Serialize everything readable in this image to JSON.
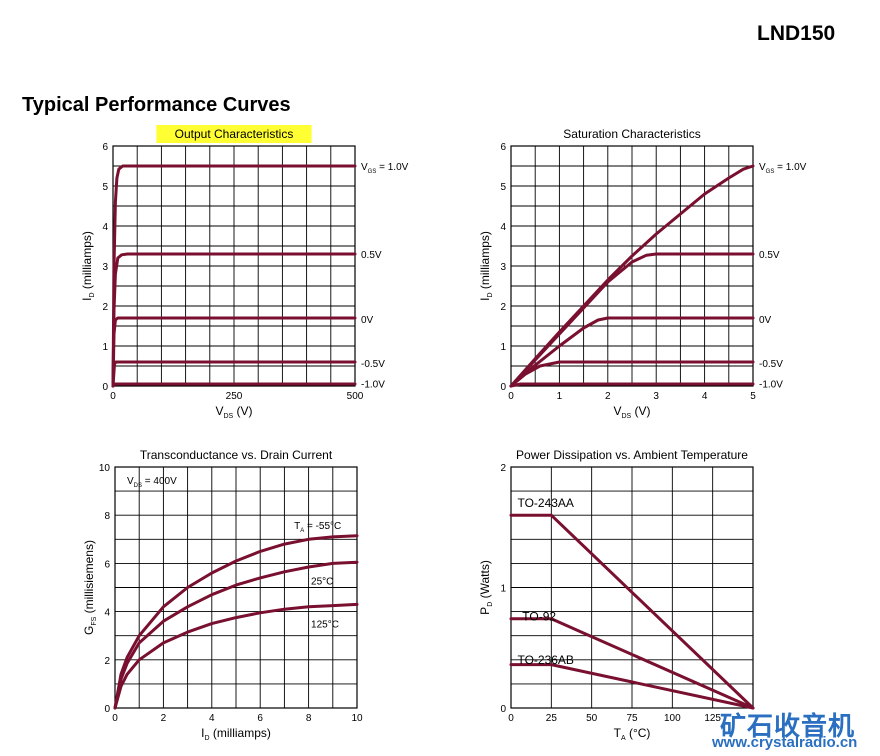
{
  "header": {
    "part_number": "LND150",
    "section_title": "Typical Performance Curves"
  },
  "watermark": {
    "brand": "矿石收音机",
    "url": "www.crystalradio.cn",
    "color": "#2a6fc0"
  },
  "colors": {
    "curve": "#7a1030",
    "grid": "#000000",
    "highlight": "#ffff33"
  },
  "chart_data": [
    {
      "type": "line",
      "title": "Output Characteristics",
      "title_highlighted": true,
      "xlabel": "V",
      "xlabel_sub": "DS",
      "xlabel_unit": " (V)",
      "ylabel": "I",
      "ylabel_sub": "D",
      "ylabel_unit": " (milliamps)",
      "xlim": [
        0,
        500
      ],
      "ylim": [
        0,
        6
      ],
      "xticks": [
        0,
        250,
        500
      ],
      "yticks": [
        0,
        1,
        2,
        3,
        4,
        5,
        6
      ],
      "xgrid": 10,
      "ygrid": 12,
      "grid": true,
      "series": [
        {
          "name": "1.0V",
          "name_prefix": "V",
          "name_sub": "GS",
          "name_suffix": " = ",
          "label_y": 5.5,
          "x": [
            0,
            2,
            5,
            8,
            12,
            20,
            30,
            500
          ],
          "y": [
            0,
            3.0,
            4.6,
            5.2,
            5.42,
            5.5,
            5.5,
            5.5
          ]
        },
        {
          "name": "0.5V",
          "label_y": 3.3,
          "x": [
            0,
            2,
            5,
            10,
            18,
            30,
            500
          ],
          "y": [
            0,
            1.9,
            2.8,
            3.2,
            3.28,
            3.3,
            3.3
          ]
        },
        {
          "name": "0V",
          "label_y": 1.68,
          "x": [
            0,
            2,
            5,
            10,
            500
          ],
          "y": [
            0,
            1.3,
            1.65,
            1.7,
            1.7
          ]
        },
        {
          "name": "-0.5V",
          "label_y": 0.58,
          "x": [
            0,
            3,
            6,
            500
          ],
          "y": [
            0,
            0.55,
            0.6,
            0.6
          ]
        },
        {
          "name": "-1.0V",
          "label_y": 0.06,
          "x": [
            0,
            3,
            500
          ],
          "y": [
            0,
            0.05,
            0.05
          ]
        }
      ]
    },
    {
      "type": "line",
      "title": "Saturation Characteristics",
      "xlabel": "V",
      "xlabel_sub": "DS",
      "xlabel_unit": " (V)",
      "ylabel": "I",
      "ylabel_sub": "D",
      "ylabel_unit": " (milliamps)",
      "xlim": [
        0,
        5
      ],
      "ylim": [
        0,
        6
      ],
      "xticks": [
        0,
        1,
        2,
        3,
        4,
        5
      ],
      "yticks": [
        0,
        1,
        2,
        3,
        4,
        5,
        6
      ],
      "xgrid": 10,
      "ygrid": 12,
      "grid": true,
      "series": [
        {
          "name": "1.0V",
          "name_prefix": "V",
          "name_sub": "GS",
          "name_suffix": " = ",
          "label_y": 5.5,
          "x": [
            0,
            0.5,
            1,
            1.5,
            2,
            2.5,
            3,
            3.5,
            4,
            4.5,
            4.8,
            5
          ],
          "y": [
            0,
            0.68,
            1.35,
            2.0,
            2.65,
            3.25,
            3.8,
            4.3,
            4.8,
            5.2,
            5.42,
            5.5
          ]
        },
        {
          "name": "0.5V",
          "label_y": 3.3,
          "x": [
            0,
            0.5,
            1,
            1.5,
            2,
            2.5,
            2.8,
            3,
            5
          ],
          "y": [
            0,
            0.65,
            1.3,
            1.95,
            2.6,
            3.1,
            3.27,
            3.3,
            3.3
          ]
        },
        {
          "name": "0V",
          "label_y": 1.68,
          "x": [
            0,
            0.5,
            1,
            1.5,
            1.8,
            2,
            5
          ],
          "y": [
            0,
            0.52,
            1.0,
            1.45,
            1.65,
            1.7,
            1.7
          ]
        },
        {
          "name": "-0.5V",
          "label_y": 0.58,
          "x": [
            0,
            0.3,
            0.6,
            1,
            5
          ],
          "y": [
            0,
            0.3,
            0.5,
            0.6,
            0.6
          ]
        },
        {
          "name": "-1.0V",
          "label_y": 0.06,
          "x": [
            0,
            0.2,
            5
          ],
          "y": [
            0,
            0.05,
            0.05
          ]
        }
      ]
    },
    {
      "type": "line",
      "title": "Transconductance vs. Drain Current",
      "xlabel": "I",
      "xlabel_sub": "D",
      "xlabel_unit": " (milliamps)",
      "ylabel": "G",
      "ylabel_sub": "FS",
      "ylabel_unit": " (millisiemens)",
      "xlim": [
        0,
        10
      ],
      "ylim": [
        0,
        10
      ],
      "xticks": [
        0,
        2,
        4,
        6,
        8,
        10
      ],
      "yticks": [
        0,
        2,
        4,
        6,
        8,
        10
      ],
      "xgrid": 10,
      "ygrid": 10,
      "grid": true,
      "condition": {
        "prefix": "V",
        "sub": "DS",
        "text": " = 400V"
      },
      "series": [
        {
          "name": "-55°C",
          "name_prefix": "T",
          "name_sub": "A",
          "name_suffix": " = ",
          "label_at": [
            7.4,
            7.6
          ],
          "x": [
            0,
            0.25,
            0.5,
            1,
            2,
            3,
            4,
            5,
            6,
            7,
            8,
            9,
            10
          ],
          "y": [
            0,
            1.4,
            2.1,
            3.0,
            4.2,
            5.0,
            5.6,
            6.1,
            6.5,
            6.8,
            7.0,
            7.1,
            7.15
          ]
        },
        {
          "name": "25°C",
          "label_at": [
            8.1,
            5.3
          ],
          "x": [
            0,
            0.25,
            0.5,
            1,
            2,
            3,
            4,
            5,
            6,
            7,
            8,
            9,
            10
          ],
          "y": [
            0,
            1.2,
            1.85,
            2.7,
            3.6,
            4.2,
            4.7,
            5.1,
            5.4,
            5.65,
            5.85,
            6.0,
            6.05
          ]
        },
        {
          "name": "125°C",
          "label_at": [
            8.1,
            3.5
          ],
          "x": [
            0,
            0.25,
            0.5,
            1,
            2,
            3,
            4,
            5,
            6,
            7,
            8,
            9,
            10
          ],
          "y": [
            0,
            0.9,
            1.4,
            2.0,
            2.7,
            3.15,
            3.5,
            3.75,
            3.95,
            4.1,
            4.2,
            4.25,
            4.3
          ]
        }
      ]
    },
    {
      "type": "line",
      "title": "Power Dissipation vs. Ambient Temperature",
      "xlabel": "T",
      "xlabel_sub": "A",
      "xlabel_unit": " (°C)",
      "ylabel": "P",
      "ylabel_sub": "D",
      "ylabel_unit": " (Watts)",
      "xlim": [
        0,
        150
      ],
      "ylim": [
        0,
        2
      ],
      "xticks": [
        0,
        25,
        50,
        75,
        100,
        125
      ],
      "yticks": [
        0,
        1,
        2
      ],
      "xgrid": 6,
      "ygrid": 10,
      "grid": true,
      "series": [
        {
          "name": "TO-243AA",
          "label_at": [
            4,
            1.7
          ],
          "x": [
            0,
            25,
            150
          ],
          "y": [
            1.6,
            1.6,
            0
          ]
        },
        {
          "name": "TO-92",
          "label_at": [
            7,
            0.76
          ],
          "x": [
            0,
            25,
            150
          ],
          "y": [
            0.74,
            0.74,
            0
          ]
        },
        {
          "name": "TO-236AB",
          "label_at": [
            4,
            0.4
          ],
          "x": [
            0,
            25,
            150
          ],
          "y": [
            0.36,
            0.36,
            0
          ]
        }
      ]
    }
  ]
}
